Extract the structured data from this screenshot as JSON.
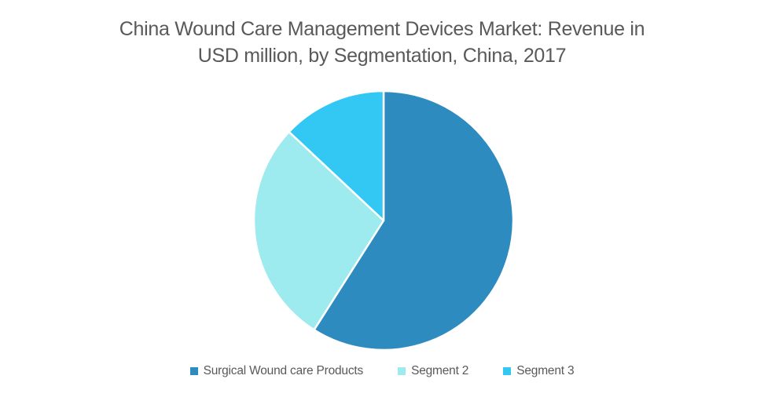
{
  "chart_data": {
    "type": "pie",
    "title": "China Wound Care Management Devices Market: Revenue in USD million, by Segmentation, China, 2017",
    "title_lines": [
      "China Wound Care Management Devices Market: Revenue in",
      "USD million, by Segmentation, China, 2017"
    ],
    "title_color": "#595959",
    "legend_position": "bottom",
    "start_angle_deg": 0,
    "direction": "clockwise",
    "separator_color": "#ffffff",
    "segments": [
      {
        "label": "Surgical Wound care Products",
        "value": 59,
        "color": "#2E8BC0"
      },
      {
        "label": "Segment 2",
        "value": 28,
        "color": "#9DEAEF"
      },
      {
        "label": "Segment 3",
        "value": 13,
        "color": "#33C7F3"
      }
    ]
  }
}
